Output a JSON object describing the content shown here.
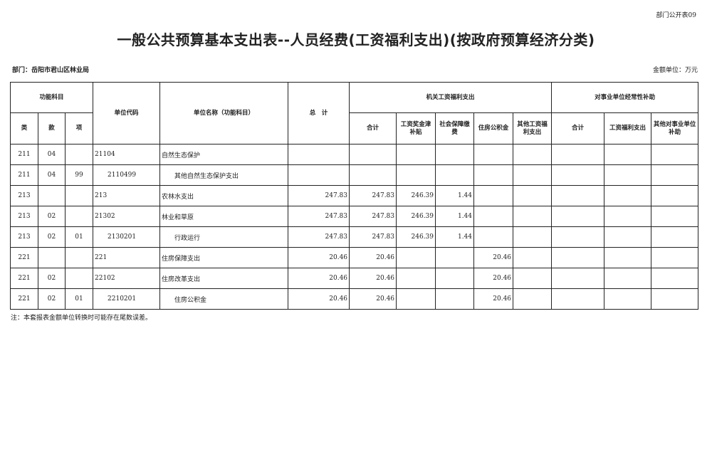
{
  "form_no": "部门公开表09",
  "title": "一般公共预算基本支出表--人员经费(工资福利支出)(按政府预算经济分类)",
  "department": "部门：岳阳市君山区林业局",
  "unit": "金额单位：万元",
  "header": {
    "func_subject": "功能科目",
    "unit_code": "单位代码",
    "unit_name": "单位名称（功能科目）",
    "total": "总　计",
    "agency_group": "机关工资福利支出",
    "institution_group": "对事业单位经常性补助",
    "lei": "类",
    "kuan": "款",
    "xiang": "项",
    "agency_cols": [
      "合计",
      "工资奖金津补贴",
      "社会保障缴费",
      "住房公积金",
      "其他工资福利支出"
    ],
    "institution_cols": [
      "合计",
      "工资福利支出",
      "其他对事业单位补助"
    ]
  },
  "rows": [
    {
      "lei": "211",
      "kuan": "04",
      "xiang": "",
      "code": "21104",
      "name": "自然生态保护",
      "indent": false,
      "values": [
        "",
        "",
        "",
        "",
        "",
        "",
        "",
        "",
        ""
      ]
    },
    {
      "lei": "211",
      "kuan": "04",
      "xiang": "99",
      "code": "2110499",
      "name": "其他自然生态保护支出",
      "indent": true,
      "values": [
        "",
        "",
        "",
        "",
        "",
        "",
        "",
        "",
        ""
      ]
    },
    {
      "lei": "213",
      "kuan": "",
      "xiang": "",
      "code": "213",
      "name": "农林水支出",
      "indent": false,
      "values": [
        "247.83",
        "247.83",
        "246.39",
        "1.44",
        "",
        "",
        "",
        "",
        ""
      ]
    },
    {
      "lei": "213",
      "kuan": "02",
      "xiang": "",
      "code": "21302",
      "name": "林业和草原",
      "indent": false,
      "values": [
        "247.83",
        "247.83",
        "246.39",
        "1.44",
        "",
        "",
        "",
        "",
        ""
      ]
    },
    {
      "lei": "213",
      "kuan": "02",
      "xiang": "01",
      "code": "2130201",
      "name": "行政运行",
      "indent": true,
      "values": [
        "247.83",
        "247.83",
        "246.39",
        "1.44",
        "",
        "",
        "",
        "",
        ""
      ]
    },
    {
      "lei": "221",
      "kuan": "",
      "xiang": "",
      "code": "221",
      "name": "住房保障支出",
      "indent": false,
      "values": [
        "20.46",
        "20.46",
        "",
        "",
        "20.46",
        "",
        "",
        "",
        ""
      ]
    },
    {
      "lei": "221",
      "kuan": "02",
      "xiang": "",
      "code": "22102",
      "name": "住房改革支出",
      "indent": false,
      "values": [
        "20.46",
        "20.46",
        "",
        "",
        "20.46",
        "",
        "",
        "",
        ""
      ]
    },
    {
      "lei": "221",
      "kuan": "02",
      "xiang": "01",
      "code": "2210201",
      "name": "住房公积金",
      "indent": true,
      "values": [
        "20.46",
        "20.46",
        "",
        "",
        "20.46",
        "",
        "",
        "",
        ""
      ]
    }
  ],
  "note": "注：本套报表金额单位转换时可能存在尾数误差。"
}
